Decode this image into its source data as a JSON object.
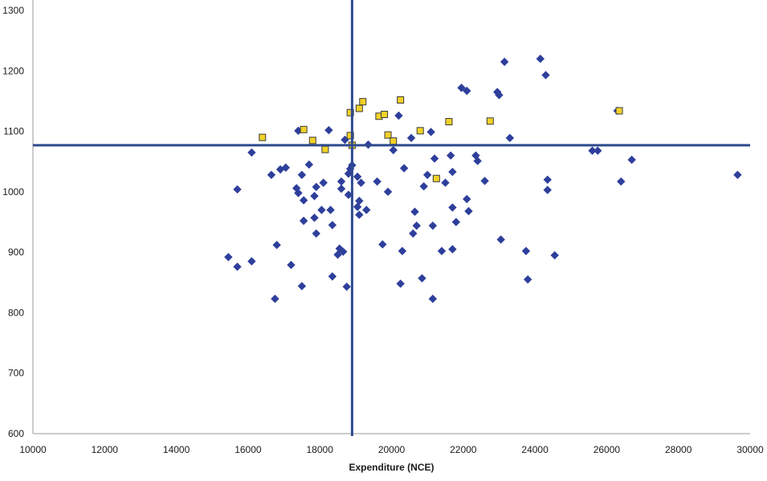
{
  "chart_data": {
    "type": "scatter",
    "title": "",
    "xlabel": "Expenditure (NCE)",
    "ylabel": "",
    "xlim": [
      10000,
      30000
    ],
    "ylim": [
      600,
      1300
    ],
    "x_ticks": [
      10000,
      12000,
      14000,
      16000,
      18000,
      20000,
      22000,
      24000,
      26000,
      28000,
      30000
    ],
    "y_ticks": [
      600,
      700,
      800,
      900,
      1000,
      1100,
      1200,
      1300
    ],
    "grid": false,
    "legend": "none",
    "reference_lines": {
      "x": 18900,
      "y": 1077,
      "color": "#2e4a8f"
    },
    "series": [
      {
        "marker": "diamond",
        "color": "#2e3f9b",
        "points": [
          [
            15450,
            892
          ],
          [
            15700,
            876
          ],
          [
            15700,
            1004
          ],
          [
            16100,
            885
          ],
          [
            16100,
            1065
          ],
          [
            16650,
            1028
          ],
          [
            16750,
            823
          ],
          [
            16800,
            912
          ],
          [
            16900,
            1037
          ],
          [
            17050,
            1040
          ],
          [
            17200,
            879
          ],
          [
            17350,
            1006
          ],
          [
            17400,
            998
          ],
          [
            17400,
            1101
          ],
          [
            17500,
            1028
          ],
          [
            17500,
            844
          ],
          [
            17550,
            952
          ],
          [
            17550,
            986
          ],
          [
            17700,
            1045
          ],
          [
            17850,
            957
          ],
          [
            17850,
            993
          ],
          [
            17900,
            1008
          ],
          [
            17900,
            931
          ],
          [
            18050,
            970
          ],
          [
            18100,
            1015
          ],
          [
            18250,
            1102
          ],
          [
            18300,
            970
          ],
          [
            18350,
            945
          ],
          [
            18350,
            860
          ],
          [
            18500,
            896
          ],
          [
            18550,
            906
          ],
          [
            18600,
            1005
          ],
          [
            18600,
            1017
          ],
          [
            18650,
            901
          ],
          [
            18700,
            1086
          ],
          [
            18750,
            843
          ],
          [
            18800,
            995
          ],
          [
            18800,
            1030
          ],
          [
            18850,
            1038
          ],
          [
            18900,
            1044
          ],
          [
            19050,
            1025
          ],
          [
            19050,
            975
          ],
          [
            19100,
            962
          ],
          [
            19100,
            985
          ],
          [
            19150,
            1015
          ],
          [
            19300,
            970
          ],
          [
            19350,
            1078
          ],
          [
            19600,
            1017
          ],
          [
            19750,
            913
          ],
          [
            19900,
            1000
          ],
          [
            20050,
            1069
          ],
          [
            20200,
            1126
          ],
          [
            20250,
            848
          ],
          [
            20300,
            902
          ],
          [
            20350,
            1039
          ],
          [
            20550,
            1089
          ],
          [
            20600,
            931
          ],
          [
            20650,
            967
          ],
          [
            20700,
            944
          ],
          [
            20850,
            857
          ],
          [
            20900,
            1009
          ],
          [
            21000,
            1028
          ],
          [
            21100,
            1099
          ],
          [
            21150,
            944
          ],
          [
            21150,
            823
          ],
          [
            21200,
            1055
          ],
          [
            21400,
            902
          ],
          [
            21500,
            1015
          ],
          [
            21650,
            1060
          ],
          [
            21700,
            1033
          ],
          [
            21700,
            974
          ],
          [
            21700,
            905
          ],
          [
            21800,
            950
          ],
          [
            21950,
            1172
          ],
          [
            22100,
            1167
          ],
          [
            22100,
            988
          ],
          [
            22150,
            968
          ],
          [
            22350,
            1060
          ],
          [
            22400,
            1051
          ],
          [
            22600,
            1018
          ],
          [
            22950,
            1165
          ],
          [
            23000,
            1160
          ],
          [
            23050,
            921
          ],
          [
            23150,
            1215
          ],
          [
            23300,
            1089
          ],
          [
            23750,
            902
          ],
          [
            23800,
            855
          ],
          [
            24150,
            1220
          ],
          [
            24300,
            1193
          ],
          [
            24350,
            1020
          ],
          [
            24350,
            1003
          ],
          [
            24550,
            895
          ],
          [
            25600,
            1068
          ],
          [
            25750,
            1068
          ],
          [
            26300,
            1134
          ],
          [
            26400,
            1017
          ],
          [
            26700,
            1053
          ],
          [
            29650,
            1028
          ]
        ]
      },
      {
        "marker": "square",
        "color": "#f2d228",
        "points": [
          [
            16400,
            1090
          ],
          [
            17550,
            1103
          ],
          [
            17800,
            1085
          ],
          [
            18150,
            1070
          ],
          [
            18850,
            1131
          ],
          [
            18850,
            1093
          ],
          [
            18900,
            1077
          ],
          [
            19100,
            1138
          ],
          [
            19200,
            1149
          ],
          [
            19650,
            1125
          ],
          [
            19800,
            1128
          ],
          [
            19900,
            1094
          ],
          [
            20050,
            1084
          ],
          [
            20250,
            1152
          ],
          [
            20800,
            1101
          ],
          [
            21250,
            1022
          ],
          [
            21600,
            1116
          ],
          [
            22750,
            1117
          ],
          [
            26350,
            1134
          ]
        ]
      }
    ]
  }
}
